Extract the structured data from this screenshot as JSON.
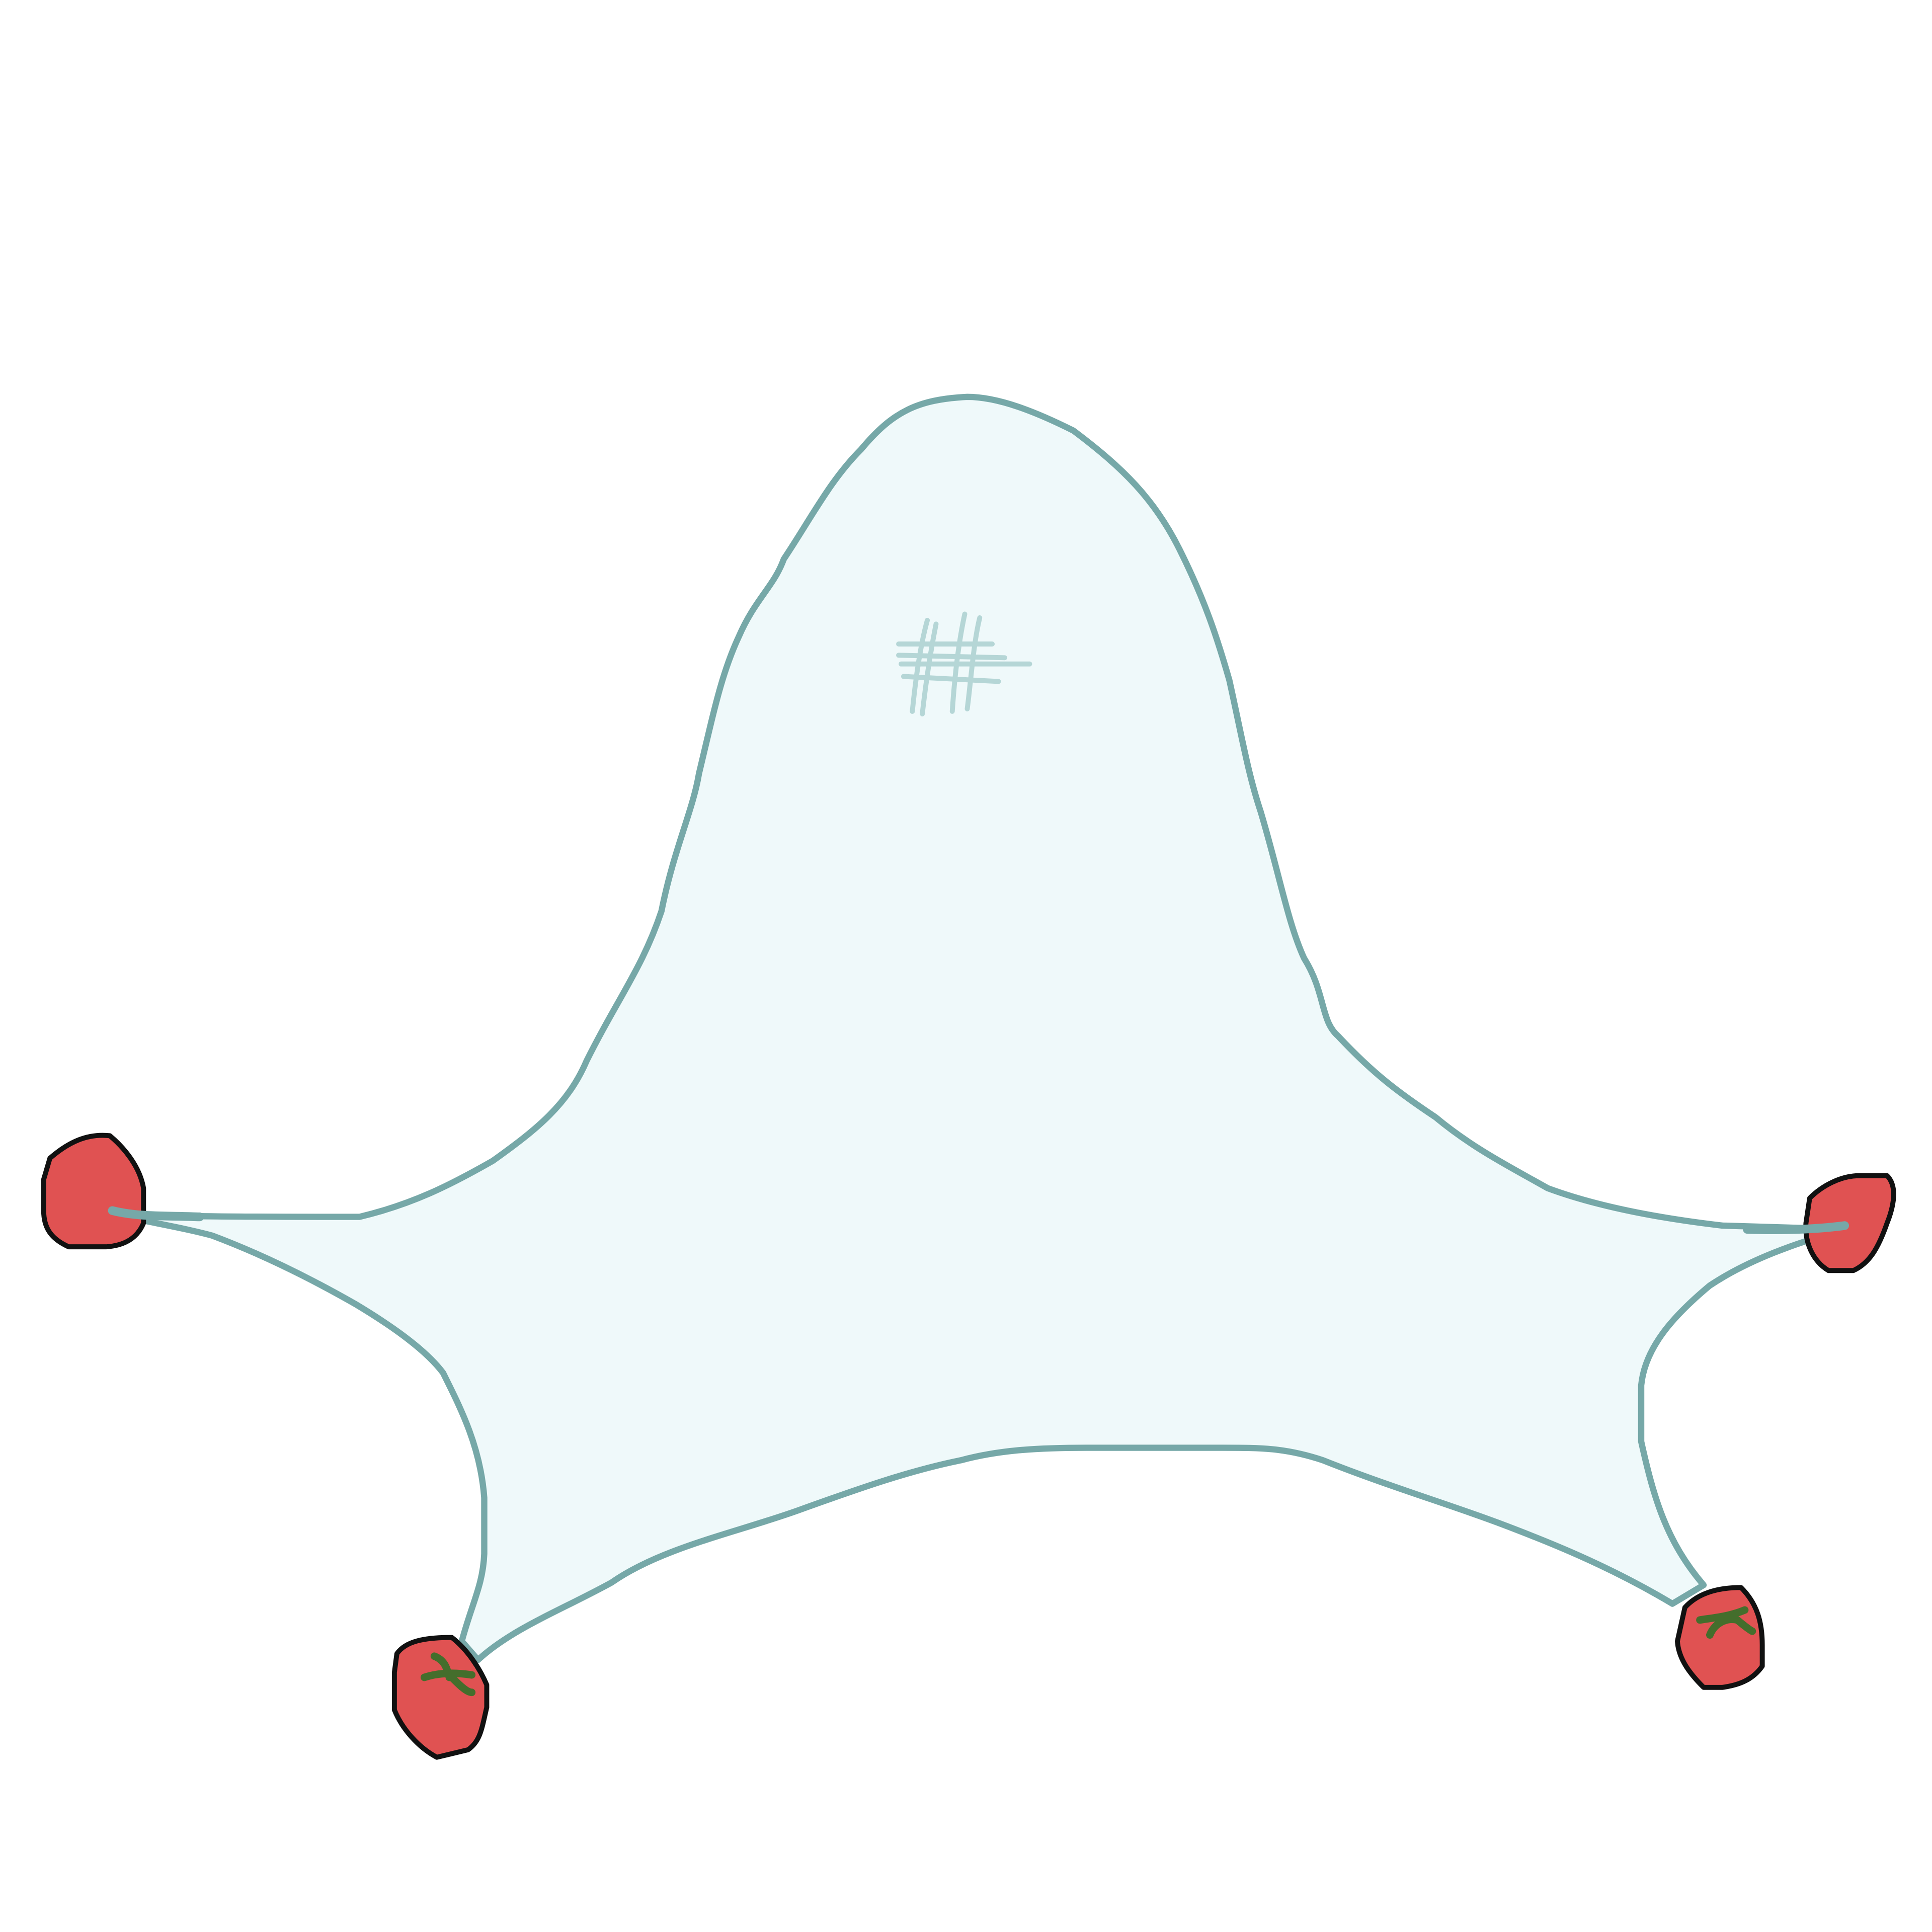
{
  "colors": {
    "background": "#ffffff",
    "shape_fill": "#eff9fa",
    "shape_stroke": "#76a8a8",
    "hash_mark": "#b5d6d6",
    "tomato_fill": "#e05252",
    "tomato_outline": "#111111",
    "stem": "#446e2c"
  },
  "shape": {
    "name": "four-legged-blob",
    "mark": "#"
  },
  "tomatoes": [
    {
      "name": "tomato-left",
      "has_stem": false
    },
    {
      "name": "tomato-right",
      "has_stem": false
    },
    {
      "name": "tomato-bottom-left",
      "has_stem": true
    },
    {
      "name": "tomato-bottom-right",
      "has_stem": true
    }
  ]
}
